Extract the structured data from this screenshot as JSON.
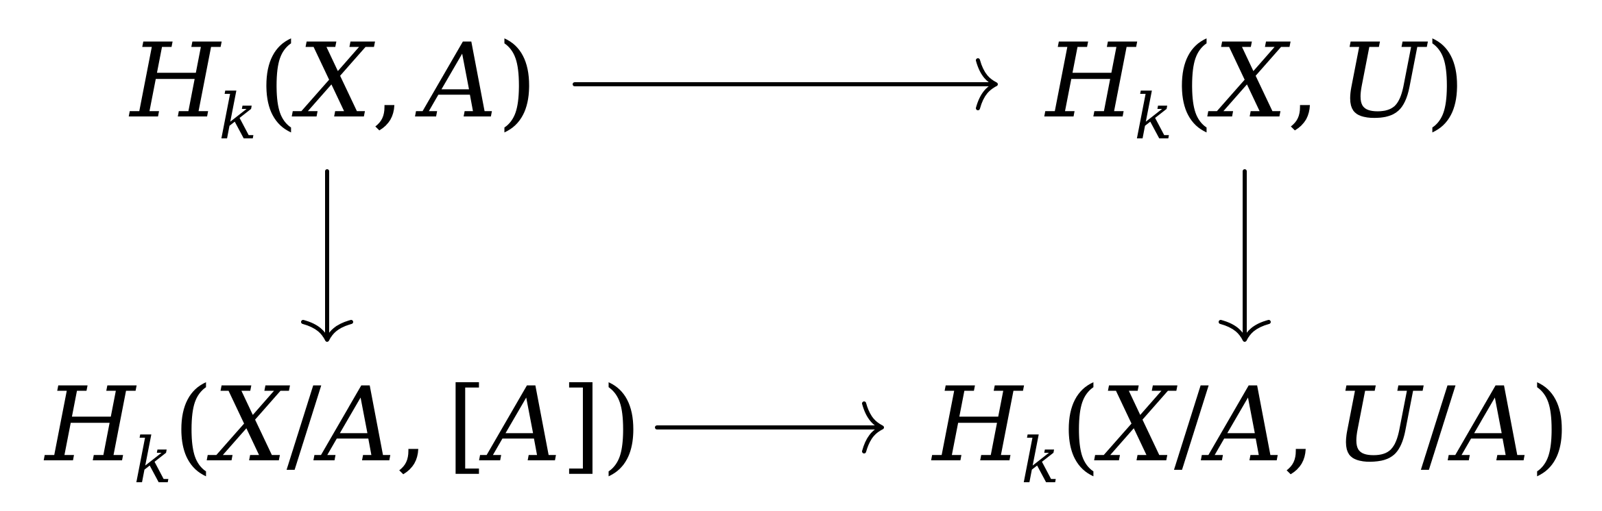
{
  "diagram": {
    "nodes": {
      "top_left": {
        "H": "H",
        "sub": "k",
        "open": "(",
        "arg1": "X",
        "comma": ",",
        "arg2": "A",
        "close": ")"
      },
      "top_right": {
        "H": "H",
        "sub": "k",
        "open": "(",
        "arg1": "X",
        "comma": ",",
        "arg2": "U",
        "close": ")"
      },
      "bottom_left": {
        "H": "H",
        "sub": "k",
        "open": "(",
        "arg1a": "X",
        "slash": "/",
        "arg1b": "A",
        "comma": ",",
        "bracket_open": "[",
        "arg2": "A",
        "bracket_close": "]",
        "close": ")"
      },
      "bottom_right": {
        "H": "H",
        "sub": "k",
        "open": "(",
        "arg1a": "X",
        "slash1": "/",
        "arg1b": "A",
        "comma": ",",
        "arg2a": "U",
        "slash2": "/",
        "arg2b": "A",
        "close": ")"
      }
    },
    "arrows": [
      {
        "from": "top_left",
        "to": "top_right"
      },
      {
        "from": "top_left",
        "to": "bottom_left"
      },
      {
        "from": "top_right",
        "to": "bottom_right"
      },
      {
        "from": "bottom_left",
        "to": "bottom_right"
      }
    ]
  }
}
